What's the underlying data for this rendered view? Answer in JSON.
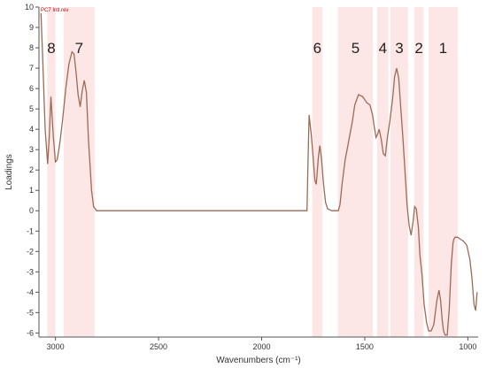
{
  "chart_data": {
    "type": "line",
    "series_label": "PC7 Intl.rev",
    "xlabel": "Wavenumbers (cm⁻¹)",
    "ylabel": "Loadings",
    "xlim": [
      3080,
      950
    ],
    "ylim": [
      -6.2,
      10
    ],
    "x_ticks": [
      3000,
      2500,
      2000,
      1500,
      1000
    ],
    "x_tick_labels": [
      "3000",
      "2500",
      "2000",
      "1500",
      "1000"
    ],
    "y_ticks": [
      10,
      9,
      8,
      7,
      6,
      5,
      4,
      3,
      2,
      1,
      0,
      -1,
      -2,
      -3,
      -4,
      -5,
      -6
    ],
    "y_tick_labels": [
      "10",
      "9",
      "8",
      "7",
      "6",
      "5",
      "4",
      "3",
      "2",
      "1",
      "0",
      "-1",
      "-2",
      "-3",
      "-4",
      "-5",
      "-6"
    ],
    "grid": false,
    "line_color": "#9b6b57",
    "band_color": "#fde6e6",
    "bands": [
      {
        "label": "8",
        "x_from": 3040,
        "x_to": 3000
      },
      {
        "label": "7",
        "x_from": 2960,
        "x_to": 2810
      },
      {
        "label": "6",
        "x_from": 1755,
        "x_to": 1705
      },
      {
        "label": "5",
        "x_from": 1630,
        "x_to": 1460
      },
      {
        "label": "4",
        "x_from": 1440,
        "x_to": 1385
      },
      {
        "label": "3",
        "x_from": 1375,
        "x_to": 1290
      },
      {
        "label": "2",
        "x_from": 1260,
        "x_to": 1215
      },
      {
        "label": "1",
        "x_from": 1190,
        "x_to": 1050
      }
    ],
    "series": [
      {
        "x": [
          3070,
          3062,
          3050,
          3038,
          3030,
          3022,
          3010,
          3000,
          2992,
          2985,
          2978,
          2965,
          2950,
          2935,
          2920,
          2910,
          2900,
          2890,
          2880,
          2870,
          2860,
          2850,
          2840,
          2825,
          2815,
          2800,
          2500,
          2200,
          1900,
          1780,
          1775,
          1770,
          1760,
          1750,
          1742,
          1735,
          1725,
          1718,
          1710,
          1700,
          1690,
          1680,
          1660,
          1640,
          1628,
          1620,
          1610,
          1595,
          1580,
          1560,
          1548,
          1530,
          1510,
          1490,
          1475,
          1462,
          1455,
          1445,
          1436,
          1430,
          1420,
          1410,
          1400,
          1390,
          1378,
          1365,
          1355,
          1345,
          1335,
          1325,
          1315,
          1305,
          1295,
          1285,
          1275,
          1265,
          1258,
          1250,
          1240,
          1232,
          1222,
          1212,
          1200,
          1190,
          1178,
          1165,
          1150,
          1140,
          1132,
          1124,
          1118,
          1110,
          1100,
          1090,
          1080,
          1072,
          1068,
          1062,
          1050,
          1035,
          1020,
          1005,
          990,
          980,
          970,
          962,
          955
        ],
        "y": [
          9.7,
          7.5,
          4.0,
          2.3,
          3.6,
          5.6,
          3.6,
          2.4,
          2.5,
          2.9,
          3.4,
          4.5,
          6.0,
          7.2,
          7.8,
          7.7,
          6.8,
          5.7,
          5.1,
          5.9,
          6.4,
          5.8,
          3.5,
          1.0,
          0.2,
          0.0,
          0.0,
          0.0,
          0.0,
          0.0,
          2.5,
          4.7,
          3.8,
          2.6,
          1.5,
          1.3,
          2.6,
          3.2,
          2.6,
          1.3,
          0.4,
          0.1,
          0.0,
          0.0,
          0.0,
          0.3,
          1.3,
          2.5,
          3.3,
          4.4,
          5.2,
          5.7,
          5.6,
          5.3,
          5.2,
          4.7,
          4.2,
          3.6,
          3.8,
          4.0,
          3.5,
          2.8,
          2.7,
          3.6,
          4.4,
          5.5,
          6.6,
          7.0,
          6.5,
          5.0,
          3.6,
          2.0,
          0.3,
          -0.7,
          -1.2,
          -0.5,
          0.2,
          0.1,
          -0.8,
          -2.2,
          -3.2,
          -4.6,
          -5.5,
          -5.9,
          -5.9,
          -5.6,
          -4.4,
          -3.9,
          -4.4,
          -5.4,
          -5.9,
          -6.1,
          -6.1,
          -4.8,
          -2.6,
          -1.6,
          -1.4,
          -1.3,
          -1.3,
          -1.4,
          -1.5,
          -1.7,
          -2.4,
          -3.3,
          -4.6,
          -4.9,
          -4.0
        ]
      }
    ]
  }
}
